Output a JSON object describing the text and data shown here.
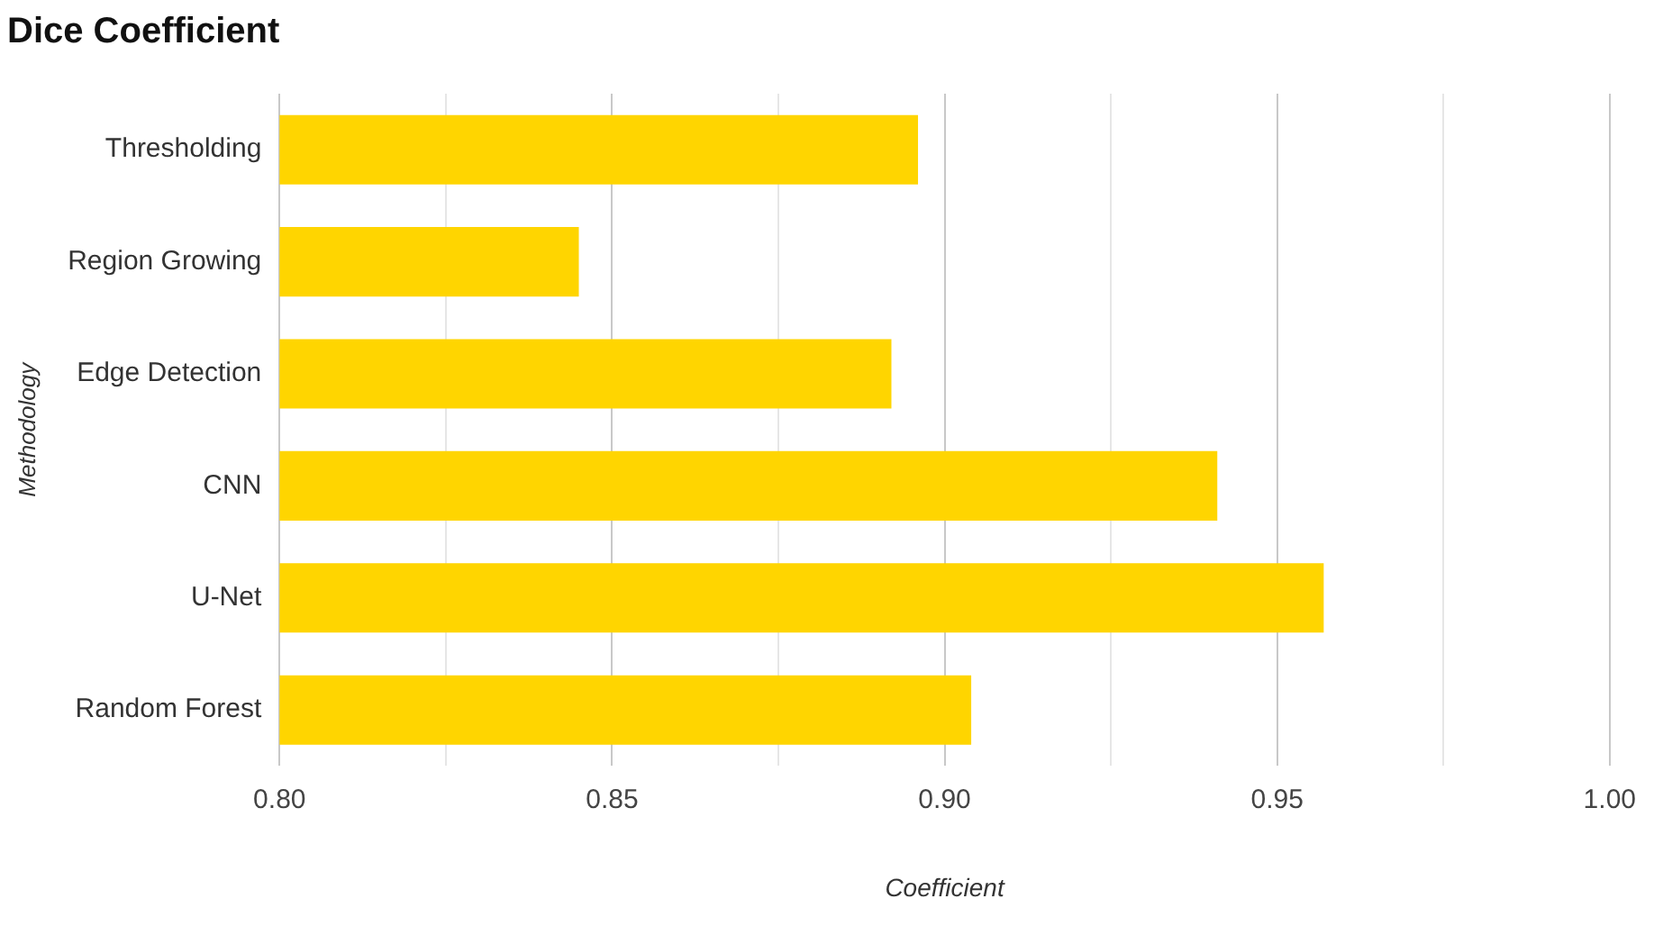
{
  "chart_data": {
    "type": "bar",
    "orientation": "horizontal",
    "title": "Dice Coefficient",
    "xlabel": "Coefficient",
    "ylabel": "Methodology",
    "categories": [
      "Thresholding",
      "Region Growing",
      "Edge Detection",
      "CNN",
      "U-Net",
      "Random Forest"
    ],
    "values": [
      0.896,
      0.845,
      0.892,
      0.941,
      0.957,
      0.904
    ],
    "color": "#ffd500",
    "xlim": [
      0.8,
      1.0
    ],
    "xticks": [
      {
        "value": 0.8,
        "label": "0.80"
      },
      {
        "value": 0.825,
        "label": null
      },
      {
        "value": 0.85,
        "label": "0.85"
      },
      {
        "value": 0.875,
        "label": null
      },
      {
        "value": 0.9,
        "label": "0.90"
      },
      {
        "value": 0.925,
        "label": null
      },
      {
        "value": 0.95,
        "label": "0.95"
      },
      {
        "value": 0.975,
        "label": null
      },
      {
        "value": 1.0,
        "label": "1.00"
      }
    ],
    "grid": "x",
    "legend": false
  }
}
